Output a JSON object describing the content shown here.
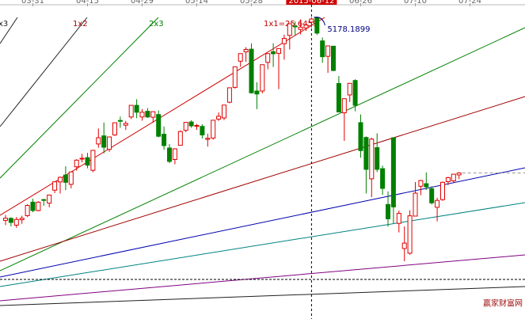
{
  "chart_data": {
    "type": "candlestick",
    "x": [
      "03-24",
      "03-25",
      "03-26",
      "03-27",
      "03-30",
      "03-31",
      "04-01",
      "04-02",
      "04-03",
      "04-07",
      "04-08",
      "04-09",
      "04-10",
      "04-13",
      "04-14",
      "04-15",
      "04-16",
      "04-17",
      "04-20",
      "04-21",
      "04-22",
      "04-23",
      "04-24",
      "04-27",
      "04-28",
      "04-29",
      "04-30",
      "05-04",
      "05-05",
      "05-06",
      "05-07",
      "05-08",
      "05-11",
      "05-12",
      "05-13",
      "05-14",
      "05-15",
      "05-18",
      "05-19",
      "05-20",
      "05-21",
      "05-22",
      "05-25",
      "05-26",
      "05-27",
      "05-28",
      "05-29",
      "06-01",
      "06-02",
      "06-03",
      "06-04",
      "06-05",
      "06-08",
      "06-09",
      "06-10",
      "06-11",
      "06-12",
      "06-15",
      "06-16",
      "06-17",
      "06-18",
      "06-19",
      "06-23",
      "06-24",
      "06-25",
      "06-26",
      "06-29",
      "06-30",
      "07-01",
      "07-02",
      "07-03",
      "07-06",
      "07-07",
      "07-08",
      "07-09",
      "07-10",
      "07-13",
      "07-14",
      "07-15",
      "07-16",
      "07-17",
      "07-20",
      "07-21",
      "07-22"
    ],
    "open": [
      3675,
      3690,
      3640,
      3680,
      3710,
      3810,
      3748,
      3829,
      3803,
      3899,
      3960,
      4011,
      3942,
      4072,
      4130,
      4140,
      4046,
      4241,
      4301,
      4201,
      4308,
      4415,
      4380,
      4441,
      4527,
      4441,
      4483,
      4439,
      4459,
      4313,
      4211,
      4126,
      4231,
      4342,
      4404,
      4376,
      4371,
      4275,
      4285,
      4425,
      4434,
      4550,
      4660,
      4854,
      4923,
      4943,
      4633,
      4633,
      4845,
      4924,
      4912,
      4984,
      5045,
      5114,
      5089,
      5100,
      5143,
      5175,
      5004,
      4890,
      4965,
      4689,
      4472,
      4604,
      4711,
      4399,
      4289,
      3983,
      4214,
      4058,
      3793,
      4287,
      3653,
      3467,
      3432,
      3707,
      3928,
      3947,
      3910,
      3772,
      3829,
      3962,
      3968,
      4012
    ],
    "high": [
      3715,
      3699,
      3700,
      3710,
      3795,
      3835,
      3817,
      3835,
      3866,
      3961,
      4000,
      4076,
      4034,
      4128,
      4168,
      4175,
      4195,
      4356,
      4400,
      4294,
      4398,
      4444,
      4412,
      4529,
      4572,
      4499,
      4507,
      4480,
      4489,
      4370,
      4240,
      4209,
      4341,
      4402,
      4417,
      4390,
      4387,
      4317,
      4418,
      4474,
      4529,
      4658,
      4814,
      4911,
      4958,
      4986,
      4698,
      4829,
      4911,
      4987,
      4947,
      5051,
      5131,
      5147,
      5164,
      5143,
      5178.1899,
      5176,
      5029,
      4968,
      4966,
      4744,
      4577,
      4690,
      4720,
      4459,
      4297,
      4287,
      4320,
      4080,
      3889,
      4291,
      3748,
      3630,
      3749,
      3959,
      3975,
      4030,
      3928,
      3843,
      3963,
      3998,
      4017,
      4033
    ],
    "low": [
      3640,
      3630,
      3620,
      3650,
      3700,
      3736,
      3742,
      3783,
      3772,
      3877,
      3874,
      3899,
      3912,
      4044,
      4105,
      4061,
      4032,
      4213,
      4172,
      4183,
      4300,
      4361,
      4345,
      4425,
      4432,
      4414,
      4434,
      4398,
      4290,
      4198,
      4099,
      4091,
      4229,
      4329,
      4361,
      4345,
      4282,
      4222,
      4273,
      4411,
      4418,
      4542,
      4651,
      4812,
      4849,
      4614,
      4499,
      4616,
      4794,
      4811,
      4647,
      4865,
      4941,
      5048,
      5052,
      5078,
      5103,
      5048,
      4842,
      4767,
      4780,
      4476,
      4264,
      4552,
      4483,
      4139,
      3875,
      3847,
      4033,
      3864,
      3629,
      3653,
      3586,
      3373,
      3421,
      3707,
      3862,
      3901,
      3793,
      3668,
      3820,
      3937,
      3954,
      3980
    ],
    "close": [
      3691,
      3660,
      3682,
      3691,
      3786,
      3748,
      3810,
      3825,
      3863,
      3961,
      3994,
      3957,
      4034,
      4121,
      4135,
      4084,
      4194,
      4287,
      4217,
      4293,
      4398,
      4414,
      4393,
      4527,
      4476,
      4476,
      4441,
      4480,
      4298,
      4229,
      4112,
      4205,
      4333,
      4401,
      4375,
      4378,
      4308,
      4283,
      4417,
      4446,
      4529,
      4657,
      4813,
      4910,
      4941,
      4620,
      4611,
      4828,
      4910,
      4909,
      4947,
      5023,
      5131,
      5113,
      5106,
      5121,
      5166,
      5062,
      4887,
      4967,
      4785,
      4478,
      4576,
      4690,
      4527,
      4192,
      4053,
      4277,
      4053,
      3912,
      3687,
      3775,
      3727,
      3507,
      3709,
      3877,
      3970,
      3924,
      3805,
      3823,
      3957,
      3992,
      4017,
      4026
    ],
    "up_color": "#e00000",
    "down_color": "#008000",
    "ylim": [
      2945,
      5307
    ],
    "xticks": [
      "03-31",
      "04-15",
      "04-29",
      "05-14",
      "05-28",
      "2015-06-12",
      "06-26",
      "07-10",
      "07-24"
    ],
    "highlight_tick": 5,
    "peak_label": "5178.1899",
    "fan_labels": [
      {
        "text": "x3",
        "color": "#202020"
      },
      {
        "text": "1x2",
        "color": "#a00000"
      },
      {
        "text": "2x3",
        "color": "#008000"
      },
      {
        "text": "1x1=25.6459",
        "color": "#c00000"
      }
    ],
    "watermark": "赢家财富网"
  }
}
